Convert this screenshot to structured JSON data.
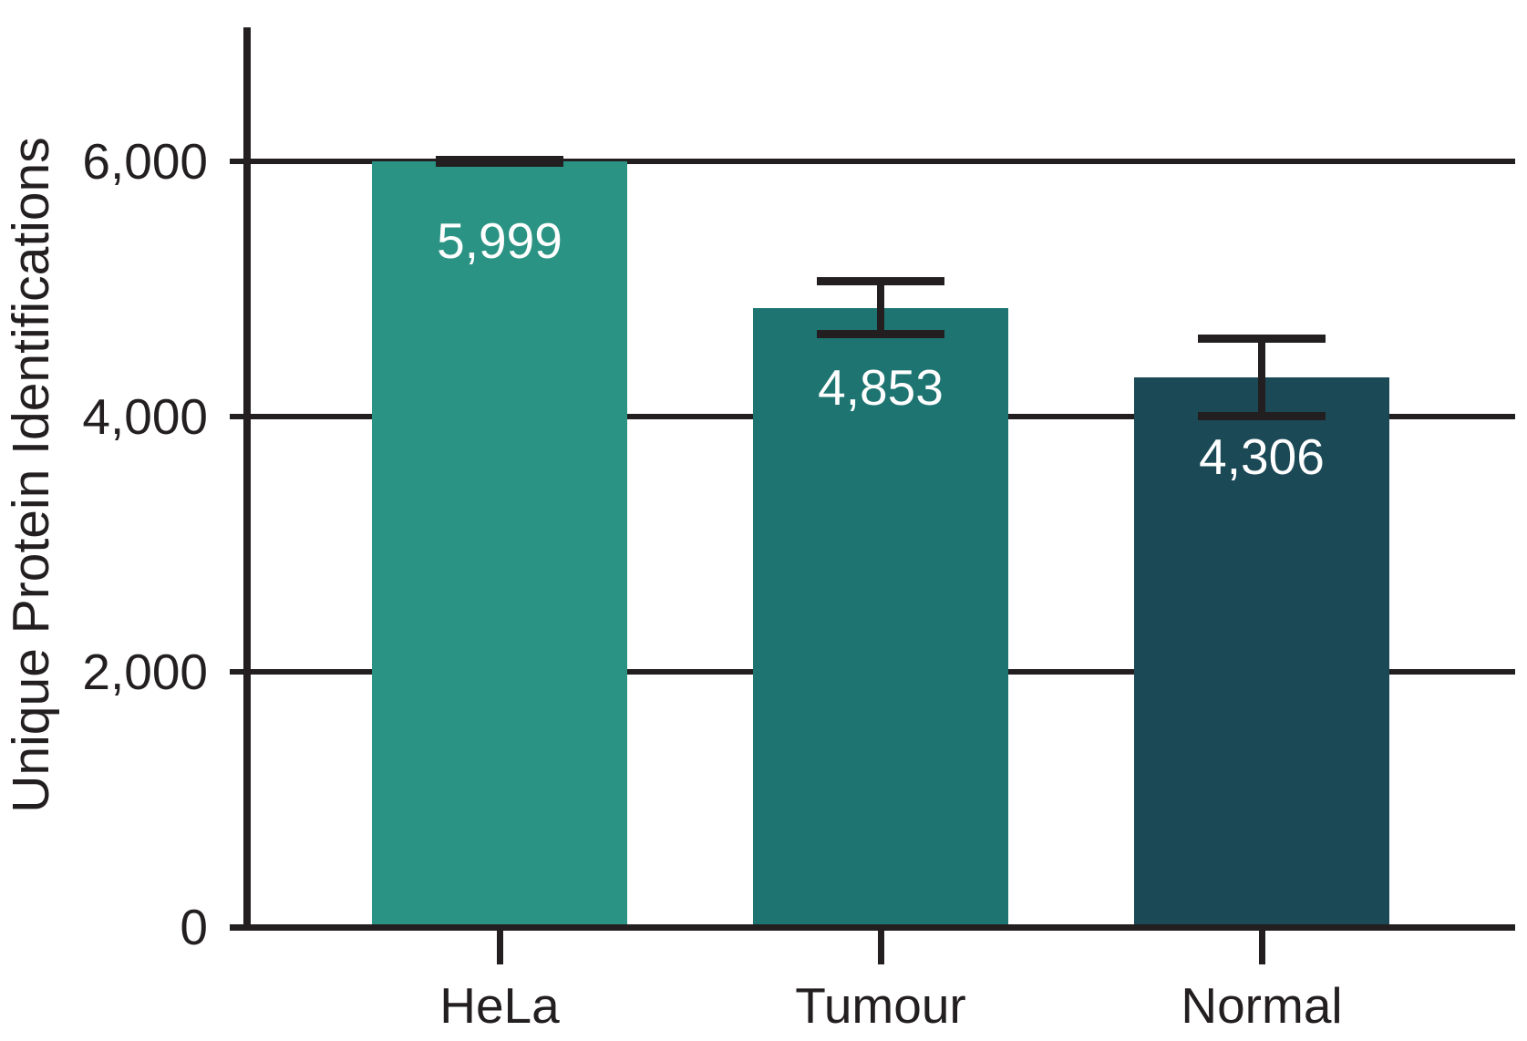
{
  "chart_data": {
    "type": "bar",
    "title": "",
    "categories": [
      "HeLa",
      "Tumour",
      "Normal"
    ],
    "values": [
      5999,
      4853,
      4306
    ],
    "value_labels": [
      "5,999",
      "4,853",
      "4,306"
    ],
    "errors": [
      10,
      205,
      305
    ],
    "bar_colors": [
      "#2b9384",
      "#1d7471",
      "#1b4956"
    ],
    "xlabel": "",
    "ylabel": "Unique Protein Identifications",
    "ylim": [
      0,
      7050
    ],
    "yticks": [
      0,
      2000,
      4000,
      6000
    ],
    "ytick_labels": [
      "0",
      "2,000",
      "4,000",
      "6,000"
    ],
    "grid": true,
    "legend": false,
    "value_label_color": "#ffffff",
    "axis_color": "#231f20",
    "background_color": "#ffffff"
  }
}
